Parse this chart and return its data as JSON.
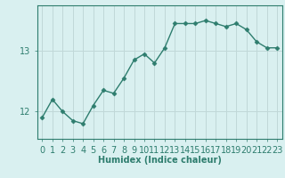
{
  "x": [
    0,
    1,
    2,
    3,
    4,
    5,
    6,
    7,
    8,
    9,
    10,
    11,
    12,
    13,
    14,
    15,
    16,
    17,
    18,
    19,
    20,
    21,
    22,
    23
  ],
  "y": [
    11.9,
    12.2,
    12.0,
    11.85,
    11.8,
    12.1,
    12.35,
    12.3,
    12.55,
    12.85,
    12.95,
    12.8,
    13.05,
    13.45,
    13.45,
    13.45,
    13.5,
    13.45,
    13.4,
    13.45,
    13.35,
    13.15,
    13.05,
    13.05
  ],
  "line_color": "#2e7d6e",
  "marker": "D",
  "marker_size": 2.5,
  "background_color": "#d9f0f0",
  "grid_color": "#c0d8d8",
  "axis_color": "#2e7d6e",
  "xlabel": "Humidex (Indice chaleur)",
  "yticks": [
    12,
    13
  ],
  "ylim": [
    11.55,
    13.75
  ],
  "xlim": [
    -0.5,
    23.5
  ],
  "xlabel_fontsize": 7,
  "tick_fontsize": 7
}
